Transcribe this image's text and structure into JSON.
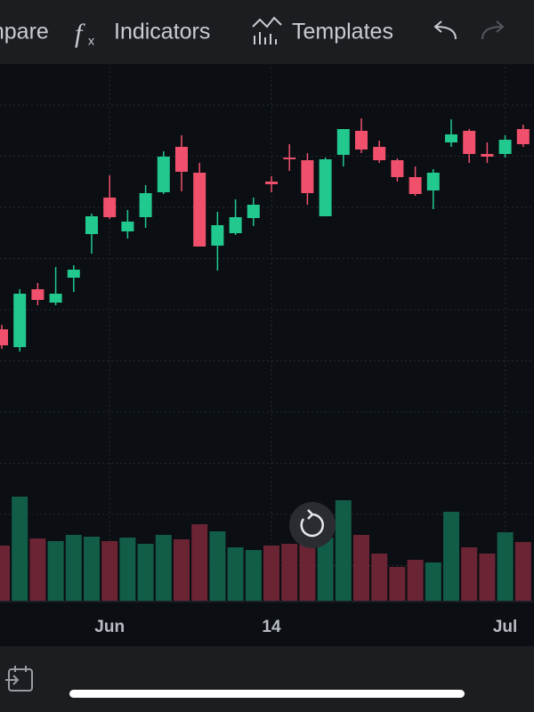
{
  "toolbar": [
    "Compare",
    "Indicators",
    "Templates"
  ],
  "chart_data": {
    "type": "candlestick",
    "categories": [
      null,
      null,
      null,
      null,
      null,
      null,
      "Jun",
      null,
      null,
      null,
      null,
      null,
      null,
      null,
      null,
      "14",
      null,
      null,
      null,
      null,
      null,
      null,
      null,
      null,
      null,
      null,
      null,
      null,
      "Jul",
      null
    ],
    "open": [
      330,
      310,
      375,
      360,
      388,
      437,
      478,
      440,
      456,
      484,
      535,
      506,
      424,
      438,
      455,
      496,
      523,
      520,
      457,
      526,
      553,
      535,
      520,
      501,
      486,
      540,
      553,
      527,
      527,
      555
    ],
    "high": [
      335,
      375,
      382,
      400,
      402,
      460,
      503,
      464,
      492,
      530,
      548,
      517,
      462,
      476,
      478,
      502,
      538,
      528,
      523,
      555,
      567,
      542,
      522,
      513,
      510,
      566,
      555,
      540,
      548,
      560
    ],
    "low": [
      308,
      305,
      357,
      357,
      372,
      415,
      454,
      432,
      444,
      482,
      485,
      423,
      396,
      436,
      446,
      484,
      508,
      470,
      457,
      513,
      528,
      517,
      496,
      480,
      465,
      535,
      517,
      517,
      523,
      535
    ],
    "close": [
      312,
      370,
      363,
      370,
      397,
      457,
      456,
      451,
      483,
      524,
      507,
      423,
      447,
      456,
      470,
      493,
      521,
      483,
      521,
      555,
      532,
      520,
      501,
      482,
      506,
      549,
      527,
      524,
      543,
      538
    ],
    "volume": [
      62,
      117,
      70,
      67,
      74,
      72,
      67,
      71,
      64,
      74,
      69,
      86,
      78,
      60,
      57,
      62,
      64,
      75,
      71,
      113,
      74,
      53,
      38,
      46,
      43,
      100,
      60,
      53,
      77,
      66
    ],
    "up_color": "#22c98f",
    "down_color": "#f0506c",
    "up_volume_color": "#115d47",
    "down_volume_color": "#6a2434",
    "ylim": [
      20,
      625
    ],
    "volume_lim": [
      0,
      120
    ],
    "grid": true
  }
}
